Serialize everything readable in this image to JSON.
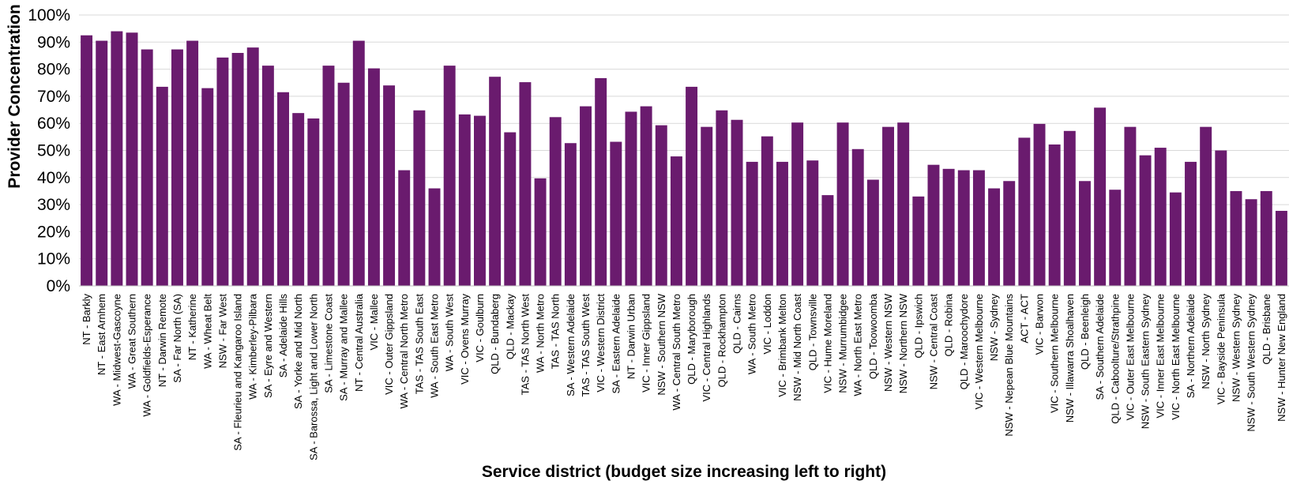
{
  "chart_data": {
    "type": "bar",
    "title": "",
    "xlabel": "Service district (budget size increasing left to right)",
    "ylabel": "Provider Concentration",
    "ylim": [
      0,
      100
    ],
    "yticks": [
      "0%",
      "10%",
      "20%",
      "30%",
      "40%",
      "50%",
      "60%",
      "70%",
      "80%",
      "90%",
      "100%"
    ],
    "grid": true,
    "bar_color": "#6a1b6e",
    "grid_color": "#d9d9d9",
    "categories": [
      "NT - Barkly",
      "NT - East Arnhem",
      "WA - Midwest-Gascoyne",
      "WA - Great Southern",
      "WA - Goldfields-Esperance",
      "NT - Darwin Remote",
      "SA - Far North (SA)",
      "NT - Katherine",
      "WA - Wheat Belt",
      "NSW - Far West",
      "SA - Fleurieu and Kangaroo Island",
      "WA - Kimberley-Pilbara",
      "SA - Eyre and Western",
      "SA - Adelaide Hills",
      "SA - Yorke and Mid North",
      "SA - Barossa, Light and Lower North",
      "SA - Limestone Coast",
      "SA - Murray and Mallee",
      "NT - Central Australia",
      "VIC - Mallee",
      "VIC - Outer Gippsland",
      "WA - Central North Metro",
      "TAS - TAS South East",
      "WA - South East Metro",
      "WA - South West",
      "VIC - Ovens Murray",
      "VIC - Goulburn",
      "QLD - Bundaberg",
      "QLD - Mackay",
      "TAS - TAS North West",
      "WA - North Metro",
      "TAS - TAS North",
      "SA - Western Adelaide",
      "TAS - TAS South West",
      "VIC - Western District",
      "SA - Eastern Adelaide",
      "NT - Darwin Urban",
      "VIC - Inner Gippsland",
      "NSW - Southern NSW",
      "WA - Central South Metro",
      "QLD - Maryborough",
      "VIC - Central Highlands",
      "QLD - Rockhampton",
      "QLD - Cairns",
      "WA - South Metro",
      "VIC - Loddon",
      "VIC - Brimbank Melton",
      "NSW - Mid North Coast",
      "QLD - Townsville",
      "VIC - Hume Moreland",
      "NSW - Murrumbidgee",
      "WA - North East Metro",
      "QLD - Toowoomba",
      "NSW - Western NSW",
      "NSW - Northern NSW",
      "QLD - Ipswich",
      "NSW - Central Coast",
      "QLD - Robina",
      "QLD - Maroochydore",
      "VIC - Western Melbourne",
      "NSW - Sydney",
      "NSW - Nepean Blue Mountains",
      "ACT - ACT",
      "VIC - Barwon",
      "VIC - Southern Melbourne",
      "NSW - Illawarra Shoalhaven",
      "QLD - Beenleigh",
      "SA - Southern Adelaide",
      "QLD - Caboolture/Strathpine",
      "VIC - Outer East Melbourne",
      "NSW - South Eastern Sydney",
      "VIC - Inner East Melbourne",
      "VIC - North East Melbourne",
      "SA - Northern Adelaide",
      "NSW - North Sydney",
      "VIC - Bayside Peninsula",
      "NSW - Western Sydney",
      "NSW - South Western Sydney",
      "QLD - Brisbane",
      "NSW - Hunter New England"
    ],
    "values": [
      92.5,
      90.5,
      94,
      93.5,
      87.3,
      73.5,
      87.3,
      90.5,
      73,
      84.3,
      86,
      88,
      81.3,
      71.5,
      63.8,
      61.8,
      81.3,
      75,
      90.5,
      80.3,
      74,
      42.7,
      64.8,
      36,
      81.3,
      63.3,
      62.8,
      77.2,
      56.7,
      75.2,
      39.7,
      62.3,
      52.7,
      66.3,
      76.7,
      53.2,
      64.3,
      66.3,
      59.3,
      47.8,
      73.5,
      58.7,
      64.8,
      61.3,
      45.8,
      55.2,
      45.8,
      60.3,
      46.3,
      33.5,
      60.3,
      50.5,
      39.2,
      58.7,
      60.3,
      33,
      44.7,
      43.2,
      42.7,
      42.7,
      36,
      38.7,
      54.7,
      59.8,
      52.2,
      57.2,
      38.7,
      65.8,
      35.5,
      58.7,
      48.2,
      51,
      34.5,
      45.8,
      58.7,
      50,
      35,
      32,
      35,
      27.7
    ]
  }
}
